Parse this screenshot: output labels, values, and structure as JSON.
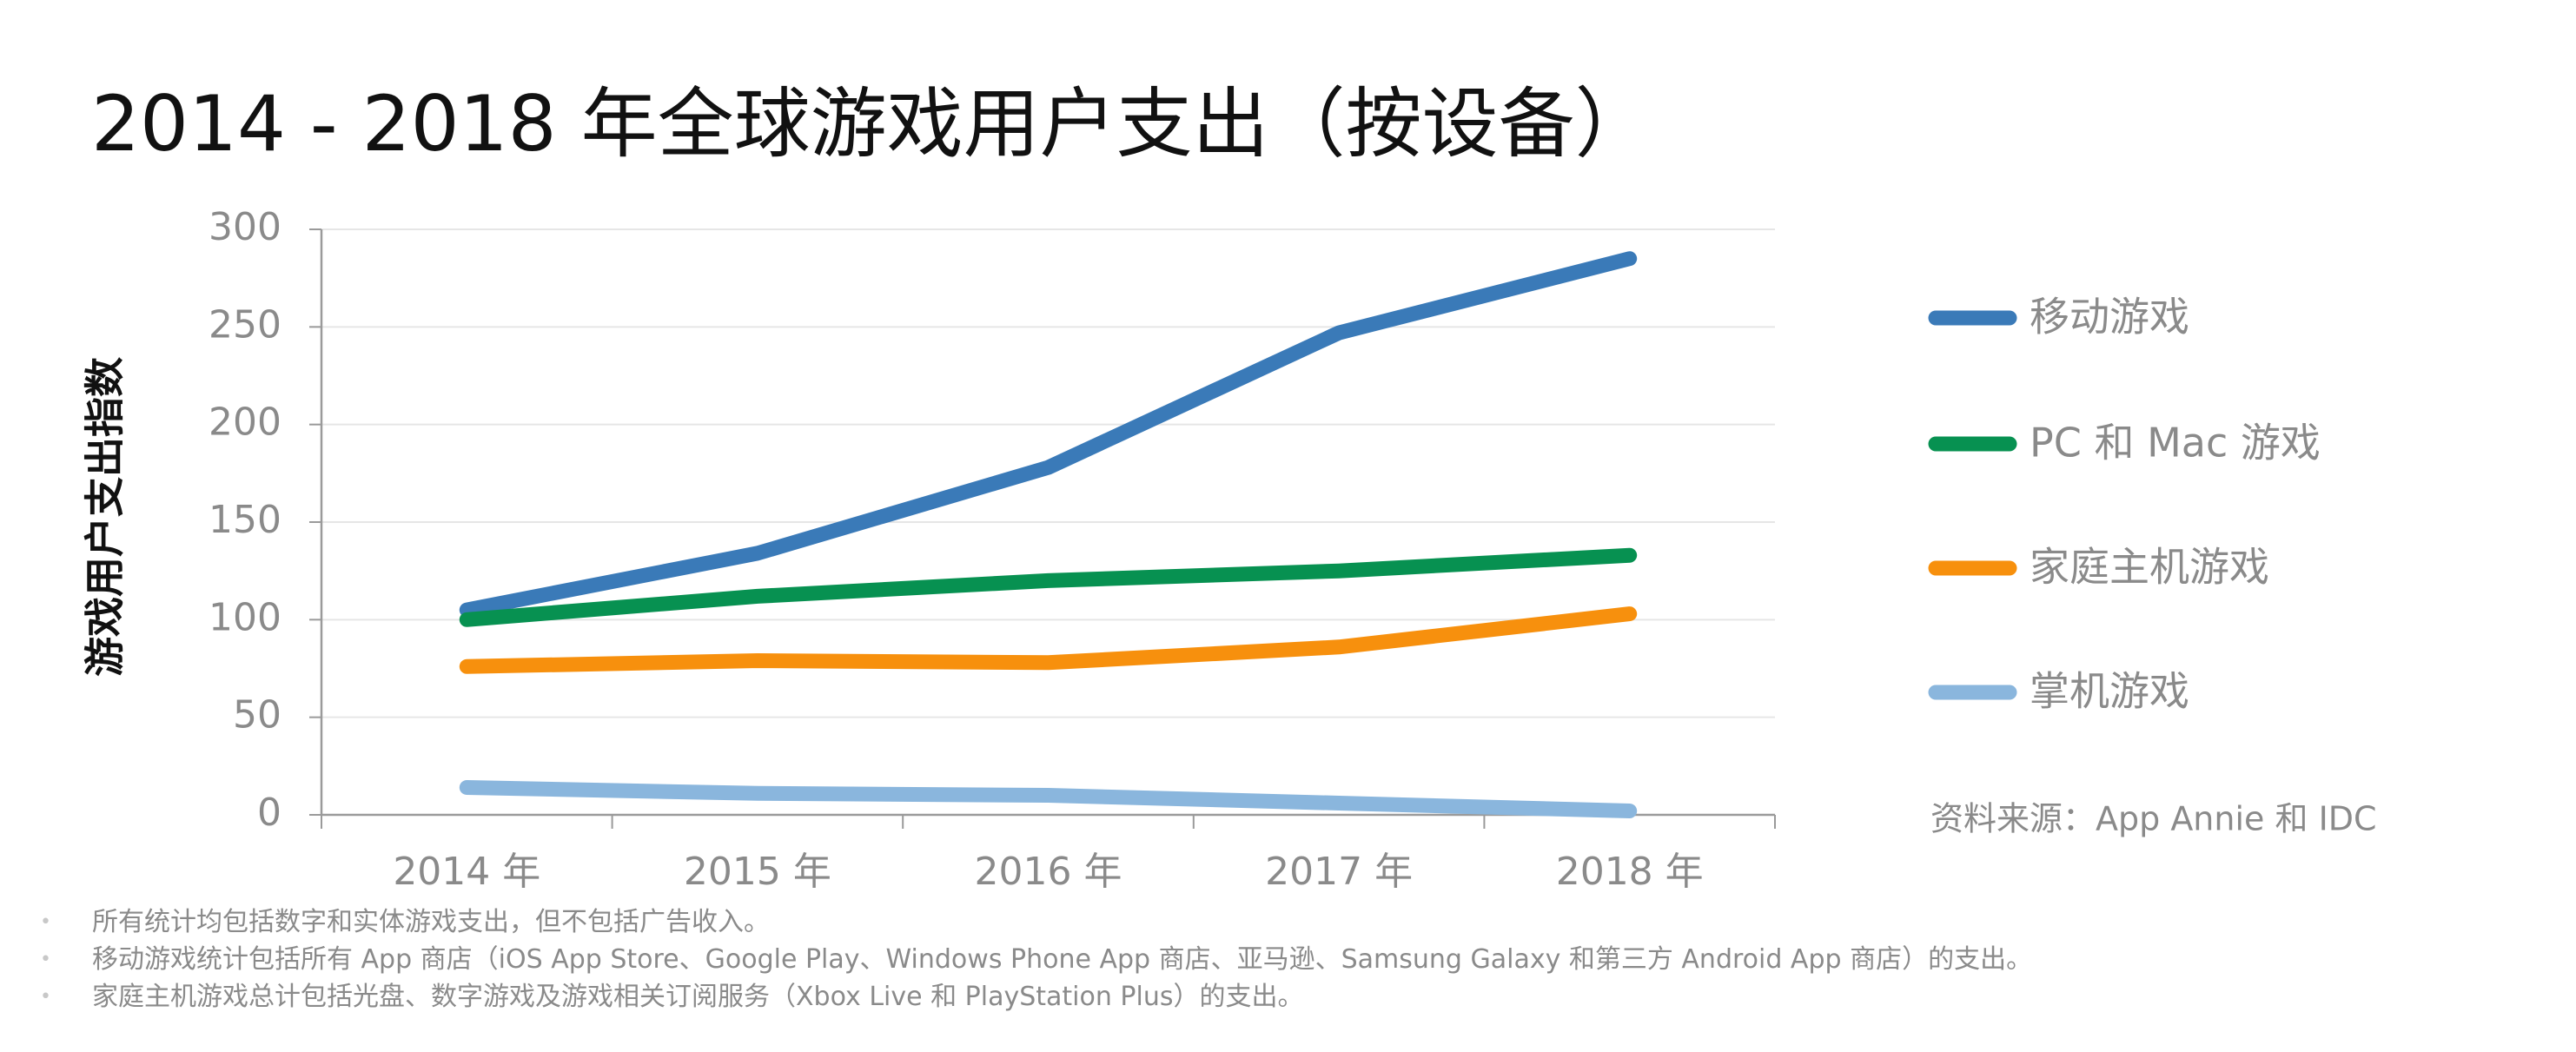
{
  "title": "2014 - 2018 年全球游戏用户支出（按设备）",
  "source": "资料来源：App Annie 和 IDC",
  "footnotes": [
    "所有统计均包括数字和实体游戏支出，但不包括广告收入。",
    "移动游戏统计包括所有 App 商店（iOS App Store、Google Play、Windows Phone App 商店、亚马逊、Samsung Galaxy 和第三方 Android App 商店）的支出。",
    "家庭主机游戏总计包括光盘、数字游戏及游戏相关订阅服务（Xbox Live 和 PlayStation Plus）的支出。"
  ],
  "chart_data": {
    "type": "line",
    "title": "2014 - 2018 年全球游戏用户支出（按设备）",
    "xlabel": "",
    "ylabel": "游戏用户支出指数",
    "categories": [
      "2014 年",
      "2015 年",
      "2016 年",
      "2017 年",
      "2018 年"
    ],
    "ylim": [
      0,
      300
    ],
    "yticks": [
      0,
      50,
      100,
      150,
      200,
      250,
      300
    ],
    "grid": true,
    "legend_position": "right",
    "series": [
      {
        "name": "移动游戏",
        "color": "#3a7ab8",
        "values": [
          105,
          134,
          178,
          247,
          285
        ]
      },
      {
        "name": "PC 和 Mac 游戏",
        "color": "#079151",
        "values": [
          100,
          112,
          120,
          125,
          133
        ]
      },
      {
        "name": "家庭主机游戏",
        "color": "#f7900d",
        "values": [
          76,
          79,
          78,
          86,
          103
        ]
      },
      {
        "name": "掌机游戏",
        "color": "#8ab6dd",
        "values": [
          14,
          11,
          10,
          6,
          2
        ]
      }
    ]
  }
}
